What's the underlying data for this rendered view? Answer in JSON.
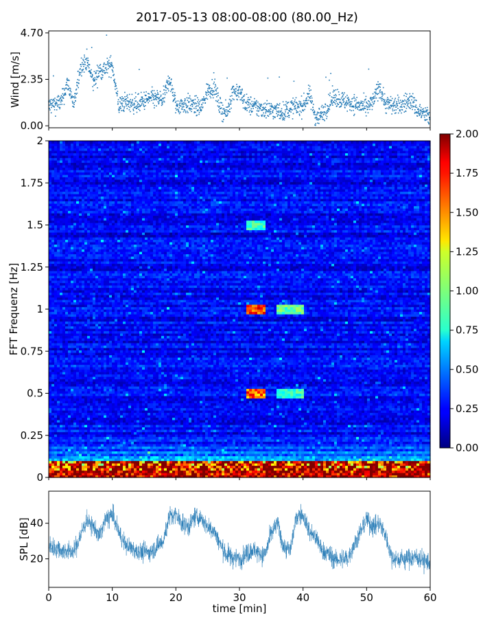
{
  "figure": {
    "title": "2017-05-13 08:00-08:00 (80.00_Hz)",
    "xlabel": "time [min]"
  },
  "chart_data": [
    {
      "id": "wind",
      "type": "scatter",
      "title": "2017-05-13 08:00-08:00 (80.00_Hz)",
      "ylabel": "Wind [m/s]",
      "xlim": [
        0,
        60
      ],
      "ylim": [
        -0.1,
        4.8
      ],
      "yticks": [
        0.0,
        2.35,
        4.7
      ],
      "ytick_labels": [
        "0.00",
        "2.35",
        "4.70"
      ],
      "color": "#1f77b4",
      "approx_level": [
        [
          0,
          1.0
        ],
        [
          2,
          1.2
        ],
        [
          3,
          2.2
        ],
        [
          4,
          1.0
        ],
        [
          5,
          3.0
        ],
        [
          6,
          3.3
        ],
        [
          7,
          2.2
        ],
        [
          8,
          2.8
        ],
        [
          9,
          2.9
        ],
        [
          10,
          3.1
        ],
        [
          11,
          1.0
        ],
        [
          12,
          1.2
        ],
        [
          14,
          1.1
        ],
        [
          16,
          1.4
        ],
        [
          18,
          1.3
        ],
        [
          19,
          2.4
        ],
        [
          20,
          1.0
        ],
        [
          22,
          1.1
        ],
        [
          24,
          0.9
        ],
        [
          25,
          1.8
        ],
        [
          26,
          2.0
        ],
        [
          27,
          0.9
        ],
        [
          28,
          0.6
        ],
        [
          29,
          1.8
        ],
        [
          30,
          1.7
        ],
        [
          31,
          1.1
        ],
        [
          33,
          0.9
        ],
        [
          35,
          0.8
        ],
        [
          37,
          0.7
        ],
        [
          38,
          0.9
        ],
        [
          40,
          1.0
        ],
        [
          41,
          1.6
        ],
        [
          42,
          0.4
        ],
        [
          43,
          0.6
        ],
        [
          45,
          1.5
        ],
        [
          46,
          1.3
        ],
        [
          48,
          1.1
        ],
        [
          50,
          0.9
        ],
        [
          51,
          1.2
        ],
        [
          52,
          2.0
        ],
        [
          53,
          1.1
        ],
        [
          55,
          1.0
        ],
        [
          57,
          1.3
        ],
        [
          58,
          0.8
        ],
        [
          60,
          0.4
        ]
      ]
    },
    {
      "id": "spectrogram",
      "type": "heatmap",
      "ylabel": "FFT Frequenz [Hz]",
      "xlim": [
        0,
        60
      ],
      "ylim": [
        0,
        2
      ],
      "yticks": [
        0,
        0.25,
        0.5,
        0.75,
        1,
        1.25,
        1.5,
        1.75,
        2
      ],
      "ytick_labels": [
        "0",
        "0.25",
        "0.5",
        "0.75",
        "1",
        "1.25",
        "1.5",
        "1.75",
        "2"
      ],
      "colormap": "jet",
      "colorbar": {
        "vmin": 0.0,
        "vmax": 2.0,
        "ticks": [
          0.0,
          0.25,
          0.5,
          0.75,
          1.0,
          1.25,
          1.5,
          1.75,
          2.0
        ],
        "tick_labels": [
          "0.00",
          "0.25",
          "0.50",
          "0.75",
          "1.00",
          "1.25",
          "1.50",
          "1.75",
          "2.00"
        ]
      },
      "background_level": 0.25,
      "features": [
        {
          "x": [
            31,
            34
          ],
          "y": 1.0,
          "value": 1.9
        },
        {
          "x": [
            31,
            34
          ],
          "y": 0.5,
          "value": 1.8
        },
        {
          "x": [
            31,
            34
          ],
          "y": 1.5,
          "value": 1.0
        },
        {
          "x": [
            36,
            40
          ],
          "y": 1.0,
          "value": 1.1
        },
        {
          "x": [
            36,
            40
          ],
          "y": 0.5,
          "value": 1.0
        },
        {
          "x": [
            0,
            60
          ],
          "y": 0.02,
          "value": 1.9
        }
      ]
    },
    {
      "id": "spl",
      "type": "line",
      "ylabel": "SPL [dB]",
      "xlabel": "time [min]",
      "xlim": [
        0,
        60
      ],
      "ylim": [
        4,
        58
      ],
      "yticks": [
        20,
        40
      ],
      "ytick_labels": [
        "20",
        "40"
      ],
      "xticks": [
        0,
        10,
        20,
        30,
        40,
        50,
        60
      ],
      "xtick_labels": [
        "0",
        "10",
        "20",
        "30",
        "40",
        "50",
        "60"
      ],
      "color": "#1f77b4",
      "approx_level": [
        [
          0,
          27
        ],
        [
          2,
          25
        ],
        [
          4,
          24
        ],
        [
          5,
          33
        ],
        [
          6,
          42
        ],
        [
          7,
          38
        ],
        [
          8,
          33
        ],
        [
          9,
          42
        ],
        [
          10,
          45
        ],
        [
          11,
          35
        ],
        [
          12,
          28
        ],
        [
          14,
          24
        ],
        [
          16,
          24
        ],
        [
          18,
          30
        ],
        [
          19,
          44
        ],
        [
          20,
          45
        ],
        [
          21,
          40
        ],
        [
          22,
          38
        ],
        [
          23,
          44
        ],
        [
          24,
          43
        ],
        [
          25,
          38
        ],
        [
          26,
          36
        ],
        [
          27,
          28
        ],
        [
          28,
          22
        ],
        [
          30,
          20
        ],
        [
          32,
          25
        ],
        [
          34,
          22
        ],
        [
          35,
          34
        ],
        [
          36,
          40
        ],
        [
          37,
          26
        ],
        [
          38,
          25
        ],
        [
          39,
          44
        ],
        [
          40,
          45
        ],
        [
          41,
          35
        ],
        [
          42,
          32
        ],
        [
          43,
          25
        ],
        [
          45,
          20
        ],
        [
          47,
          20
        ],
        [
          49,
          35
        ],
        [
          50,
          42
        ],
        [
          51,
          38
        ],
        [
          52,
          40
        ],
        [
          53,
          33
        ],
        [
          54,
          20
        ],
        [
          56,
          20
        ],
        [
          58,
          21
        ],
        [
          60,
          17
        ]
      ]
    }
  ]
}
